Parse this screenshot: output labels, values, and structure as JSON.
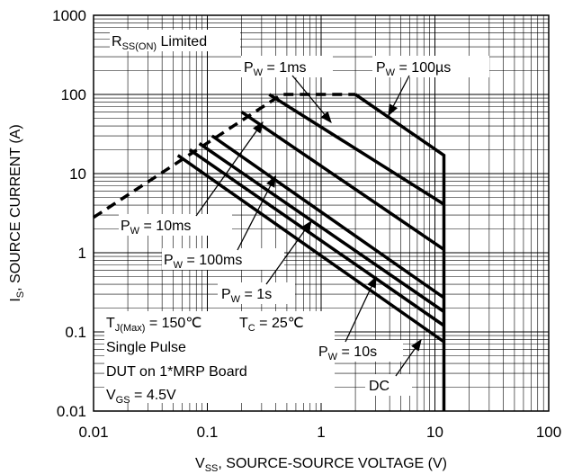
{
  "chart_data": {
    "type": "line",
    "x_scale": "log",
    "y_scale": "log",
    "xlim": [
      0.01,
      100
    ],
    "ylim": [
      0.01,
      1000
    ],
    "grid": true,
    "x_ticks": [
      "0.01",
      "0.1",
      "1",
      "10",
      "100"
    ],
    "y_ticks": [
      "1000",
      "100",
      "10",
      "1",
      "0.1",
      "0.01"
    ],
    "xlabel": {
      "main": "V",
      "sub": "SS",
      "rest": ", SOURCE-SOURCE VOLTAGE (V)"
    },
    "ylabel": {
      "main": "I",
      "sub": "S",
      "rest": ", SOURCE CURRENT (A)"
    },
    "series": [
      {
        "id": "rds-limit",
        "style": "dashed",
        "points": [
          [
            0.01,
            2.8
          ],
          [
            0.45,
            100
          ],
          [
            2.0,
            100
          ]
        ]
      },
      {
        "id": "pw-100us",
        "label": {
          "main": "P",
          "sub": "W",
          "rest": " = 100µs"
        },
        "points": [
          [
            2.0,
            100
          ],
          [
            12,
            17
          ],
          [
            12,
            0.01
          ]
        ]
      },
      {
        "id": "pw-1ms",
        "label": {
          "main": "P",
          "sub": "W",
          "rest": " = 1ms"
        },
        "points": [
          [
            0.35,
            100
          ],
          [
            12,
            4.1
          ]
        ]
      },
      {
        "id": "pw-10ms",
        "label": {
          "main": "P",
          "sub": "W",
          "rest": " = 10ms"
        },
        "points": [
          [
            0.2,
            60
          ],
          [
            12,
            1.1
          ]
        ]
      },
      {
        "id": "pw-100ms",
        "label": {
          "main": "P",
          "sub": "W",
          "rest": " = 100ms"
        },
        "points": [
          [
            0.11,
            30
          ],
          [
            12,
            0.27
          ]
        ]
      },
      {
        "id": "pw-1s",
        "label": {
          "main": "P",
          "sub": "W",
          "rest": " = 1s"
        },
        "points": [
          [
            0.085,
            24
          ],
          [
            12,
            0.18
          ]
        ]
      },
      {
        "id": "pw-10s",
        "label": {
          "main": "P",
          "sub": "W",
          "rest": " = 10s"
        },
        "points": [
          [
            0.07,
            20
          ],
          [
            12,
            0.12
          ]
        ]
      },
      {
        "id": "dc",
        "label": {
          "main": "DC",
          "sub": "",
          "rest": ""
        },
        "points": [
          [
            0.055,
            17
          ],
          [
            12,
            0.075
          ]
        ]
      }
    ],
    "annotations": {
      "rds": {
        "main": "R",
        "sub": "SS(ON)",
        "rest": " Limited"
      },
      "tj": {
        "main": "T",
        "sub": "J(Max)",
        "rest": " = 150℃"
      },
      "tc": {
        "main": "T",
        "sub": "C",
        "rest": " = 25℃"
      },
      "pulse": "Single Pulse",
      "dut": "DUT on 1*MRP Board",
      "vgs": {
        "main": "V",
        "sub": "GS",
        "rest": " = 4.5V"
      }
    }
  }
}
